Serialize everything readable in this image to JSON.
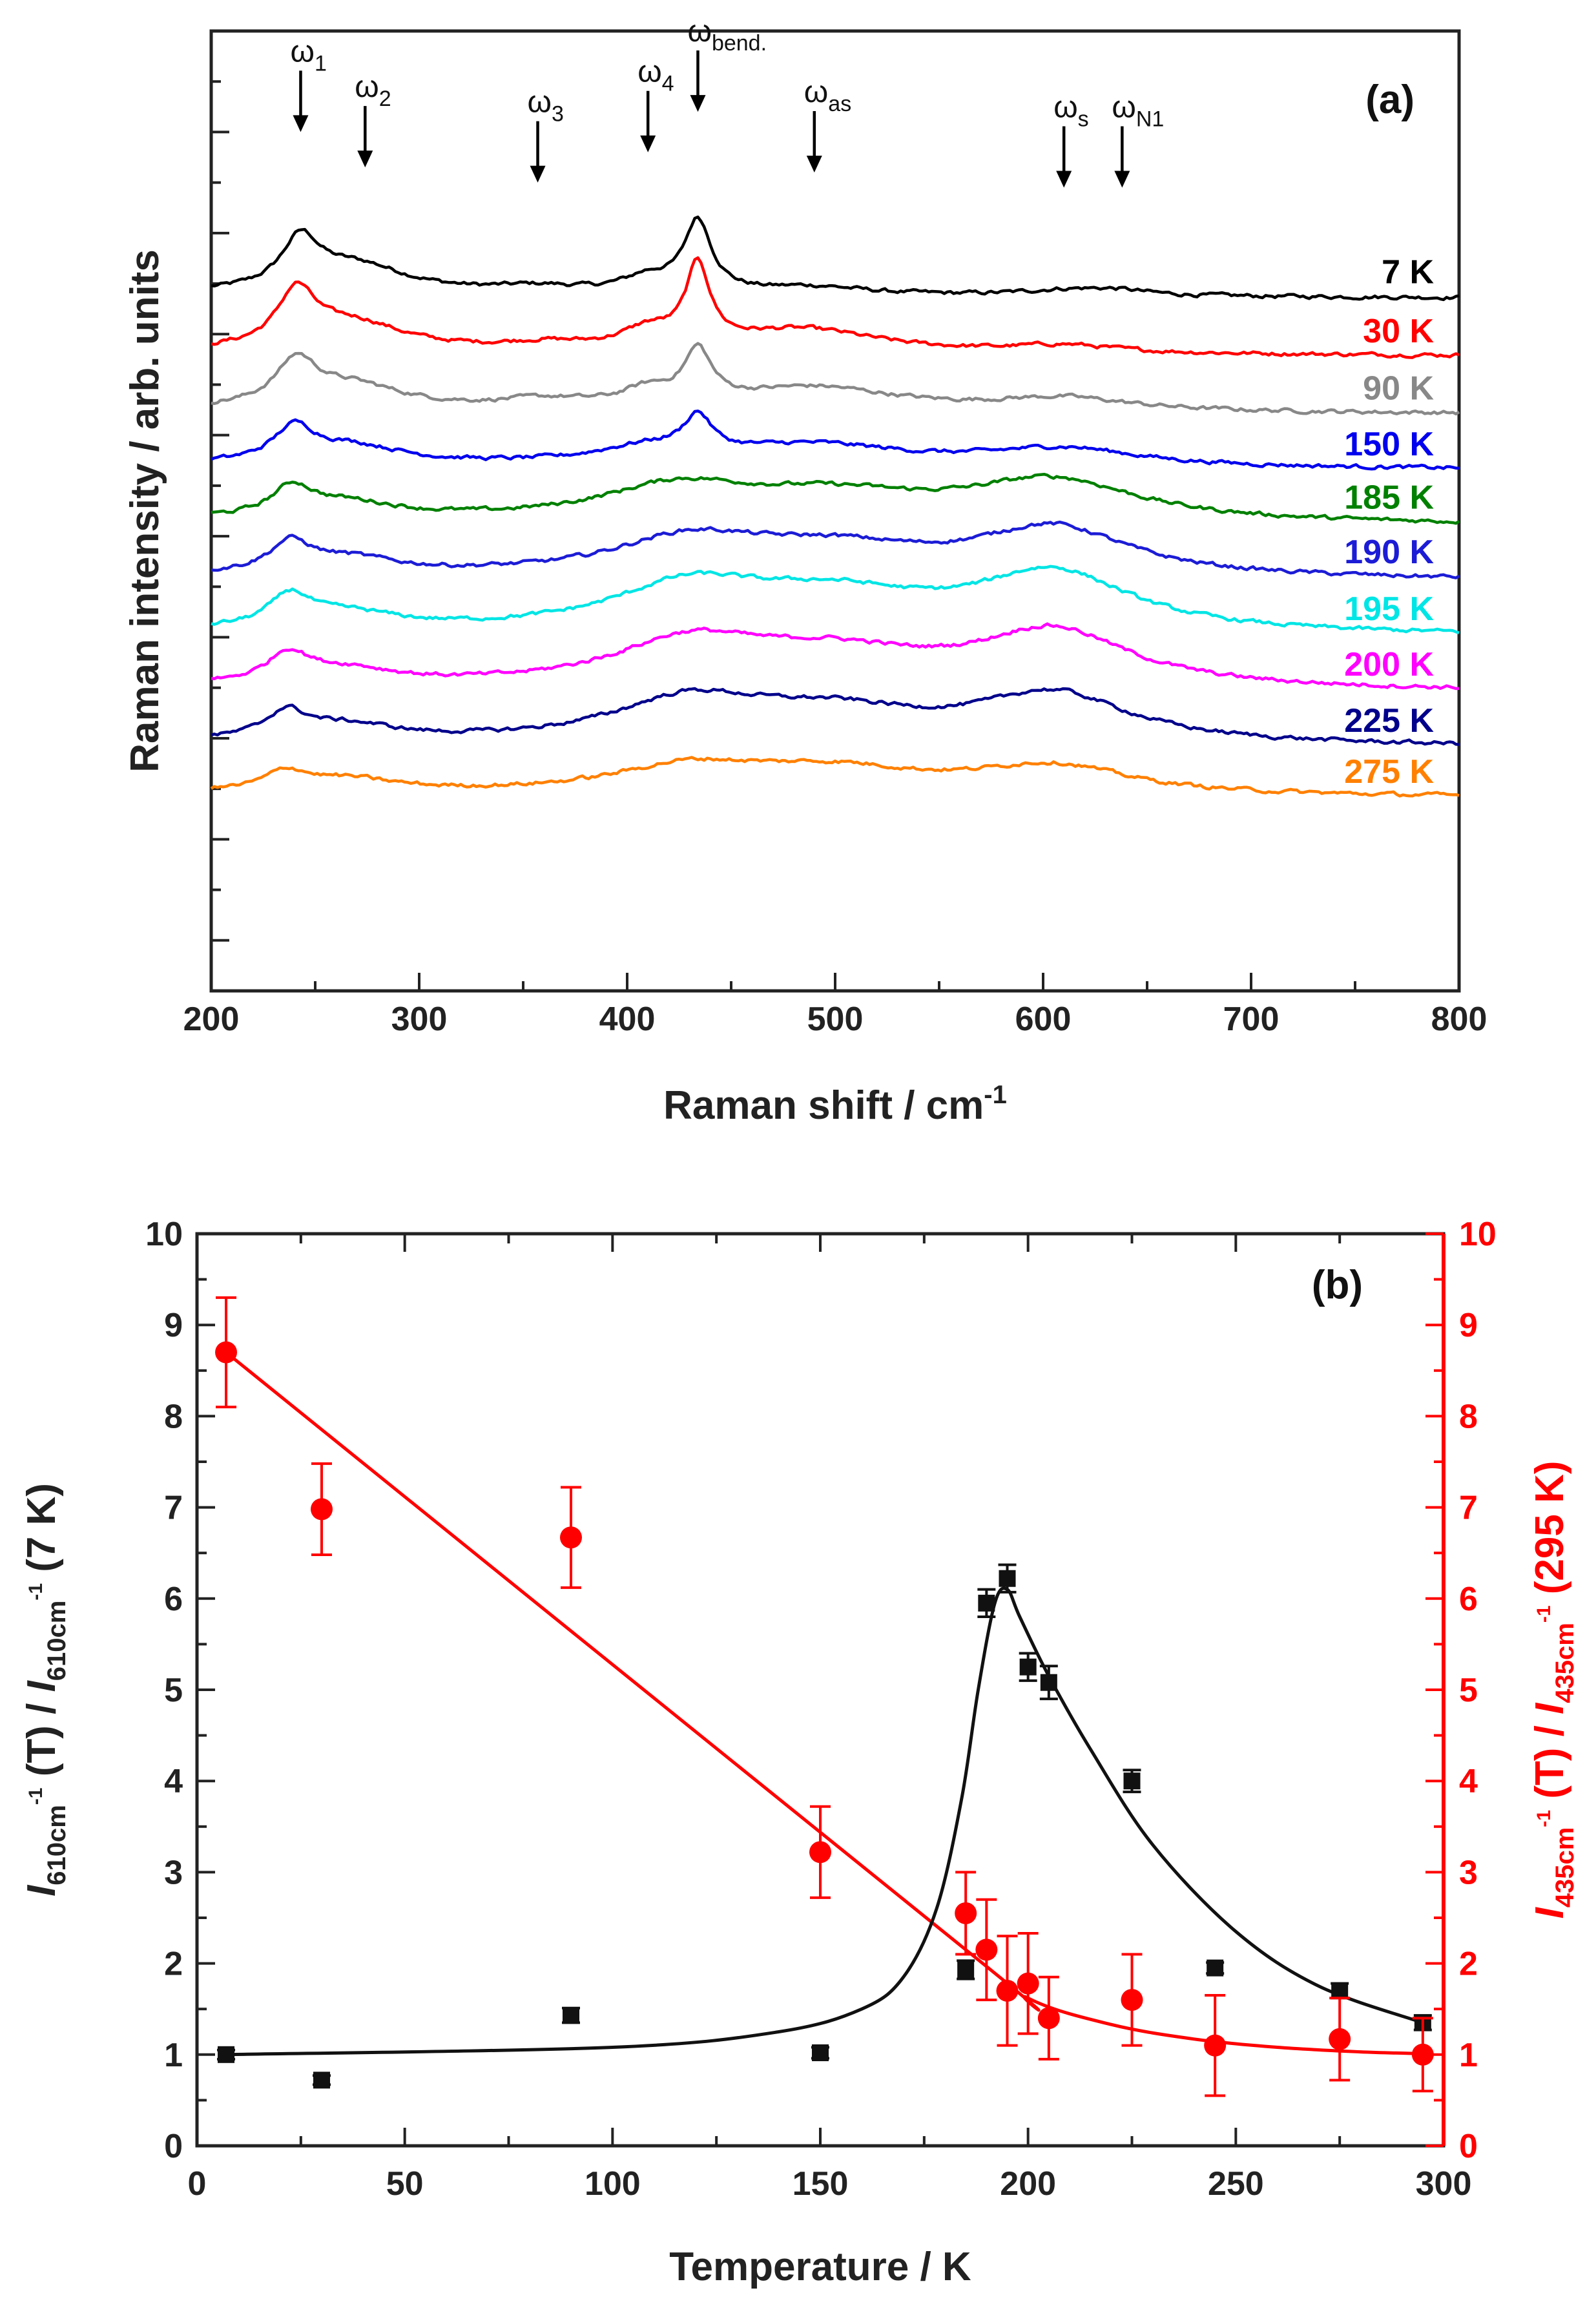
{
  "chart_data": [
    {
      "type": "line",
      "panel": "(a)",
      "xlabel_main": "Raman shift / cm",
      "xlabel_sup": "-1",
      "ylabel": "Raman intensity / arb. units",
      "xlim": [
        200,
        800
      ],
      "xticks": [
        "200",
        "300",
        "400",
        "500",
        "600",
        "700",
        "800"
      ],
      "annotations": [
        {
          "main": "ω",
          "sub": "1",
          "x": 243,
          "y": 17.0
        },
        {
          "main": "ω",
          "sub": "2",
          "x": 274,
          "y": 16.3
        },
        {
          "main": "ω",
          "sub": "3",
          "x": 357,
          "y": 16.0
        },
        {
          "main": "ω",
          "sub": "4",
          "x": 410,
          "y": 16.6
        },
        {
          "main": "ω",
          "sub": "bend.",
          "x": 434,
          "y": 17.4
        },
        {
          "main": "ω",
          "sub": "as",
          "x": 490,
          "y": 16.2
        },
        {
          "main": "ω",
          "sub": "s",
          "x": 610,
          "y": 15.9
        },
        {
          "main": "ω",
          "sub": "N1",
          "x": 638,
          "y": 15.9
        }
      ],
      "series": [
        {
          "name": "7 K",
          "color": "#000000",
          "baseline": 13.8,
          "bands": [
            [
              0.95,
              243,
              11
            ],
            [
              0.55,
              270,
              30
            ],
            [
              0.12,
              357,
              25
            ],
            [
              0.3,
              410,
              15
            ],
            [
              1.4,
              434,
              8
            ],
            [
              0.15,
              490,
              30
            ],
            [
              0.1,
              610,
              25
            ],
            [
              0.1,
              635,
              20
            ]
          ]
        },
        {
          "name": "30 K",
          "color": "#ff0000",
          "baseline": 12.65,
          "bands": [
            [
              1.05,
              241,
              11
            ],
            [
              0.55,
              268,
              30
            ],
            [
              0.12,
              360,
              25
            ],
            [
              0.35,
              410,
              15
            ],
            [
              1.55,
              434,
              7
            ],
            [
              0.45,
              485,
              45
            ],
            [
              0.15,
              610,
              30
            ]
          ]
        },
        {
          "name": "90 K",
          "color": "#888888",
          "baseline": 11.5,
          "bands": [
            [
              0.85,
              241,
              12
            ],
            [
              0.45,
              268,
              30
            ],
            [
              0.15,
              360,
              25
            ],
            [
              0.3,
              410,
              15
            ],
            [
              1.0,
              434,
              8
            ],
            [
              0.45,
              490,
              50
            ],
            [
              0.25,
              610,
              40
            ]
          ]
        },
        {
          "name": "150 K",
          "color": "#0000ee",
          "baseline": 10.4,
          "bands": [
            [
              0.65,
              240,
              12
            ],
            [
              0.35,
              268,
              30
            ],
            [
              0.3,
              410,
              30
            ],
            [
              0.7,
              434,
              8
            ],
            [
              0.4,
              490,
              55
            ],
            [
              0.35,
              610,
              45
            ]
          ]
        },
        {
          "name": "185 K",
          "color": "#008000",
          "baseline": 9.3,
          "bands": [
            [
              0.55,
              239,
              12
            ],
            [
              0.3,
              266,
              30
            ],
            [
              0.65,
              425,
              45
            ],
            [
              0.45,
              500,
              55
            ],
            [
              0.8,
              605,
              50
            ]
          ]
        },
        {
          "name": "190 K",
          "color": "#1c1cd6",
          "baseline": 8.2,
          "bands": [
            [
              0.55,
              238,
              12
            ],
            [
              0.3,
              266,
              30
            ],
            [
              0.7,
              430,
              45
            ],
            [
              0.5,
              500,
              55
            ],
            [
              0.95,
              605,
              45
            ]
          ]
        },
        {
          "name": "195 K",
          "color": "#00e5e5",
          "baseline": 7.1,
          "bands": [
            [
              0.6,
              238,
              12
            ],
            [
              0.3,
              266,
              30
            ],
            [
              0.85,
              430,
              45
            ],
            [
              0.65,
              500,
              55
            ],
            [
              1.15,
              605,
              45
            ]
          ]
        },
        {
          "name": "200 K",
          "color": "#ff00ff",
          "baseline": 6.0,
          "bands": [
            [
              0.55,
              237,
              12
            ],
            [
              0.3,
              265,
              30
            ],
            [
              0.85,
              430,
              45
            ],
            [
              0.6,
              500,
              55
            ],
            [
              1.1,
              605,
              45
            ]
          ]
        },
        {
          "name": "225 K",
          "color": "#00008b",
          "baseline": 4.9,
          "bands": [
            [
              0.5,
              236,
              12
            ],
            [
              0.3,
              265,
              30
            ],
            [
              0.8,
              430,
              45
            ],
            [
              0.55,
              500,
              55
            ],
            [
              0.95,
              605,
              45
            ]
          ]
        },
        {
          "name": "275 K",
          "color": "#ff8000",
          "baseline": 3.9,
          "bands": [
            [
              0.35,
              236,
              12
            ],
            [
              0.25,
              265,
              30
            ],
            [
              0.5,
              430,
              45
            ],
            [
              0.45,
              500,
              55
            ],
            [
              0.55,
              605,
              45
            ]
          ]
        }
      ]
    },
    {
      "type": "scatter",
      "panel": "(b)",
      "xlabel": "Temperature / K",
      "xlim": [
        0,
        300
      ],
      "ylim": [
        0,
        10
      ],
      "xticks": [
        "0",
        "50",
        "100",
        "150",
        "200",
        "250",
        "300"
      ],
      "yticks": [
        "0",
        "1",
        "2",
        "3",
        "4",
        "5",
        "6",
        "7",
        "8",
        "9",
        "10"
      ],
      "ylabel_left": {
        "I": "I",
        "sub": "610cm",
        "sup": "-1",
        "mid": " (T) / ",
        "I2": "I",
        "sub2": "610cm",
        "sup2": "-1",
        "end": " (7 K)"
      },
      "ylabel_right": {
        "I": "I",
        "sub": "435cm",
        "sup": "-1",
        "mid": " (T) / ",
        "I2": "I",
        "sub2": "435cm",
        "sup2": "-1",
        "end": " (295 K)"
      },
      "series": [
        {
          "name": "I610cm-1(T)/I610cm-1(7 K)",
          "color": "#111111",
          "marker": "square",
          "axis": "left",
          "x": [
            7,
            30,
            90,
            150,
            185,
            190,
            195,
            200,
            205,
            225,
            245,
            275,
            295
          ],
          "y": [
            1.0,
            0.72,
            1.43,
            1.02,
            1.93,
            5.95,
            6.22,
            5.25,
            5.08,
            4.0,
            1.95,
            1.7,
            1.35
          ],
          "err": [
            0.05,
            0.05,
            0.08,
            0.06,
            0.1,
            0.15,
            0.15,
            0.15,
            0.18,
            0.12,
            0.06,
            0.08,
            0.08
          ]
        },
        {
          "name": "I435cm-1(T)/I435cm-1(295 K)",
          "color": "#ff0000",
          "marker": "circle",
          "axis": "right",
          "x": [
            7,
            30,
            90,
            150,
            185,
            190,
            195,
            200,
            205,
            225,
            245,
            275,
            295
          ],
          "y": [
            8.7,
            6.98,
            6.67,
            3.22,
            2.55,
            2.15,
            1.7,
            1.78,
            1.4,
            1.6,
            1.1,
            1.17,
            1.0
          ],
          "err": [
            0.6,
            0.5,
            0.55,
            0.5,
            0.45,
            0.55,
            0.6,
            0.55,
            0.45,
            0.5,
            0.55,
            0.45,
            0.4
          ]
        }
      ],
      "fit_red": {
        "x": [
          7,
          185,
          200,
          220,
          240,
          260,
          280,
          295
        ],
        "y": [
          8.7,
          2.15,
          1.62,
          1.33,
          1.17,
          1.08,
          1.03,
          1.01
        ]
      },
      "fit_black": {
        "x": [
          7,
          100,
          140,
          160,
          170,
          178,
          184,
          188,
          192,
          195,
          198,
          205,
          215,
          230,
          250,
          270,
          295
        ],
        "y": [
          1.0,
          1.08,
          1.25,
          1.5,
          1.85,
          2.6,
          3.8,
          5.0,
          5.95,
          6.1,
          5.8,
          5.15,
          4.35,
          3.3,
          2.35,
          1.75,
          1.35
        ]
      }
    }
  ]
}
